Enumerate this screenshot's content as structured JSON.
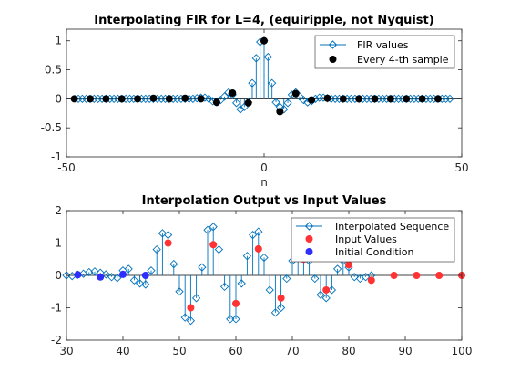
{
  "chart_data": [
    {
      "type": "stem",
      "title": "Interpolating FIR for L=4,  (equiripple, not Nyquist)",
      "xlabel": "n",
      "ylabel": "",
      "xlim": [
        -50,
        50
      ],
      "ylim": [
        -1,
        1.2
      ],
      "xticks": [
        -50,
        0,
        50
      ],
      "yticks": [
        -1,
        -0.5,
        0,
        0.5,
        1
      ],
      "grid": false,
      "legend": {
        "position": "top-right",
        "entries": [
          "FIR values",
          "Every 4-th sample"
        ]
      },
      "series": [
        {
          "name": "FIR values",
          "style": "stem",
          "color": "#0072BD",
          "marker": "diamond-open",
          "x": [
            -47,
            -46,
            -45,
            -44,
            -43,
            -42,
            -41,
            -40,
            -39,
            -38,
            -37,
            -36,
            -35,
            -34,
            -33,
            -32,
            -31,
            -30,
            -29,
            -28,
            -27,
            -26,
            -25,
            -24,
            -23,
            -22,
            -21,
            -20,
            -19,
            -18,
            -17,
            -16,
            -15,
            -14,
            -13,
            -12,
            -11,
            -10,
            -9,
            -8,
            -7,
            -6,
            -5,
            -4,
            -3,
            -2,
            -1,
            0,
            1,
            2,
            3,
            4,
            5,
            6,
            7,
            8,
            9,
            10,
            11,
            12,
            13,
            14,
            15,
            16,
            17,
            18,
            19,
            20,
            21,
            22,
            23,
            24,
            25,
            26,
            27,
            28,
            29,
            30,
            31,
            32,
            33,
            34,
            35,
            36,
            37,
            38,
            39,
            40,
            41,
            42,
            43,
            44,
            45,
            46,
            47
          ],
          "y": [
            0,
            0,
            0,
            0,
            0,
            0,
            0,
            0,
            0,
            0,
            0,
            0,
            0,
            0,
            0,
            0,
            0,
            0,
            0,
            0,
            0,
            0,
            0,
            0,
            0,
            0,
            0,
            0,
            0,
            0,
            0.01,
            0.02,
            0.02,
            0,
            -0.04,
            -0.06,
            -0.02,
            0.04,
            0.11,
            0.07,
            -0.07,
            -0.18,
            -0.14,
            -0.06,
            0.27,
            0.7,
            0.98,
            1,
            0.72,
            0.27,
            -0.06,
            -0.14,
            -0.18,
            -0.07,
            0.07,
            0.11,
            0.04,
            -0.02,
            -0.06,
            -0.04,
            0,
            0.02,
            0.02,
            0.01,
            0,
            0,
            0,
            0,
            0,
            0,
            0,
            0,
            0,
            0,
            0,
            0,
            0,
            0,
            0,
            0,
            0,
            0,
            0,
            0,
            0,
            0,
            0,
            0,
            0,
            0,
            0,
            0,
            0,
            0,
            0
          ]
        },
        {
          "name": "Every 4-th sample",
          "style": "points",
          "color": "#000000",
          "marker": "circle-filled",
          "x": [
            -48,
            -44,
            -40,
            -36,
            -32,
            -28,
            -24,
            -20,
            -16,
            -12,
            -8,
            -4,
            0,
            4,
            8,
            12,
            16,
            20,
            24,
            28,
            32,
            36,
            40,
            44
          ],
          "y": [
            0,
            0,
            0,
            0,
            0,
            0.01,
            0,
            0.01,
            0,
            -0.06,
            0.1,
            -0.07,
            1,
            -0.22,
            0.09,
            -0.02,
            0.01,
            0,
            0,
            0,
            0,
            0,
            0,
            0
          ]
        }
      ]
    },
    {
      "type": "stem",
      "title": "Interpolation Output vs Input Values",
      "xlabel": "",
      "ylabel": "",
      "xlim": [
        30,
        100
      ],
      "ylim": [
        -2,
        2
      ],
      "xticks": [
        30,
        40,
        50,
        60,
        70,
        80,
        90,
        100
      ],
      "yticks": [
        -2,
        -1,
        0,
        1,
        2
      ],
      "grid": false,
      "legend": {
        "position": "top-right",
        "entries": [
          "Interpolated Sequence",
          "Input Values",
          "Initial Condition"
        ]
      },
      "series": [
        {
          "name": "Interpolated Sequence",
          "style": "stem",
          "color": "#0072BD",
          "marker": "diamond-open",
          "x": [
            30,
            31,
            32,
            33,
            34,
            35,
            36,
            37,
            38,
            39,
            40,
            41,
            42,
            43,
            44,
            45,
            46,
            47,
            48,
            49,
            50,
            51,
            52,
            53,
            54,
            55,
            56,
            57,
            58,
            59,
            60,
            61,
            62,
            63,
            64,
            65,
            66,
            67,
            68,
            69,
            70,
            71,
            72,
            73,
            74,
            75,
            76,
            77,
            78,
            79,
            80,
            81,
            82,
            83,
            84
          ],
          "y": [
            0,
            -0.02,
            0.02,
            0.05,
            0.1,
            0.12,
            0.08,
            0.03,
            -0.05,
            -0.08,
            0.15,
            0.2,
            -0.15,
            -0.25,
            -0.28,
            0.15,
            0.8,
            1.3,
            1.25,
            0.35,
            -0.5,
            -1.3,
            -1.4,
            -0.7,
            0.25,
            1.4,
            1.5,
            0.8,
            -0.35,
            -1.35,
            -1.35,
            -0.25,
            0.6,
            1.25,
            1.35,
            0.55,
            -0.45,
            -1.15,
            -1.0,
            -0.1,
            0.45,
            0.7,
            0.7,
            0.45,
            -0.1,
            -0.6,
            -0.7,
            -0.45,
            0.2,
            0.45,
            0.25,
            -0.05,
            -0.1,
            -0.05,
            0
          ]
        },
        {
          "name": "Input Values",
          "style": "points",
          "color": "#FF3333",
          "marker": "circle-filled",
          "x": [
            48,
            52,
            56,
            60,
            64,
            68,
            72,
            76,
            80,
            84,
            88,
            92,
            96,
            100
          ],
          "y": [
            1.0,
            -1.0,
            0.95,
            -0.87,
            0.82,
            -0.7,
            0.5,
            -0.45,
            0.33,
            -0.15,
            0,
            0,
            0,
            0
          ]
        },
        {
          "name": "Initial Condition",
          "style": "points",
          "color": "#2E2EFF",
          "marker": "circle-filled",
          "x": [
            32,
            36,
            40,
            44
          ],
          "y": [
            0.02,
            -0.05,
            0.03,
            0.0
          ]
        }
      ]
    }
  ]
}
